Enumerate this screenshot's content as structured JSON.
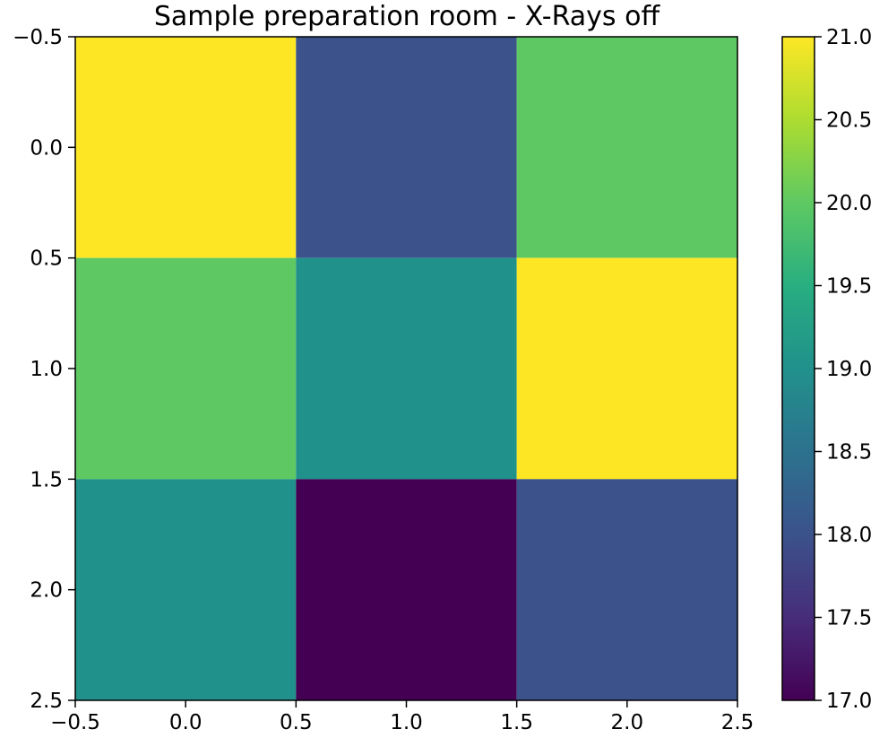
{
  "chart_data": {
    "type": "heatmap",
    "title": "Sample preparation room - X-Rays off",
    "xlabel": "",
    "ylabel": "",
    "xlim": [
      -0.5,
      2.5
    ],
    "ylim": [
      2.5,
      -0.5
    ],
    "xticks": [
      "−0.5",
      "0.0",
      "0.5",
      "1.0",
      "1.5",
      "2.0",
      "2.5"
    ],
    "yticks": [
      "−0.5",
      "0.0",
      "0.5",
      "1.0",
      "1.5",
      "2.0",
      "2.5"
    ],
    "values": [
      [
        21,
        18,
        20
      ],
      [
        20,
        19,
        21
      ],
      [
        19,
        17,
        18
      ]
    ],
    "colormap": "viridis",
    "colorbar": {
      "range": [
        17,
        21
      ],
      "ticks": [
        "17.0",
        "17.5",
        "18.0",
        "18.5",
        "19.0",
        "19.5",
        "20.0",
        "20.5",
        "21.0"
      ]
    }
  }
}
